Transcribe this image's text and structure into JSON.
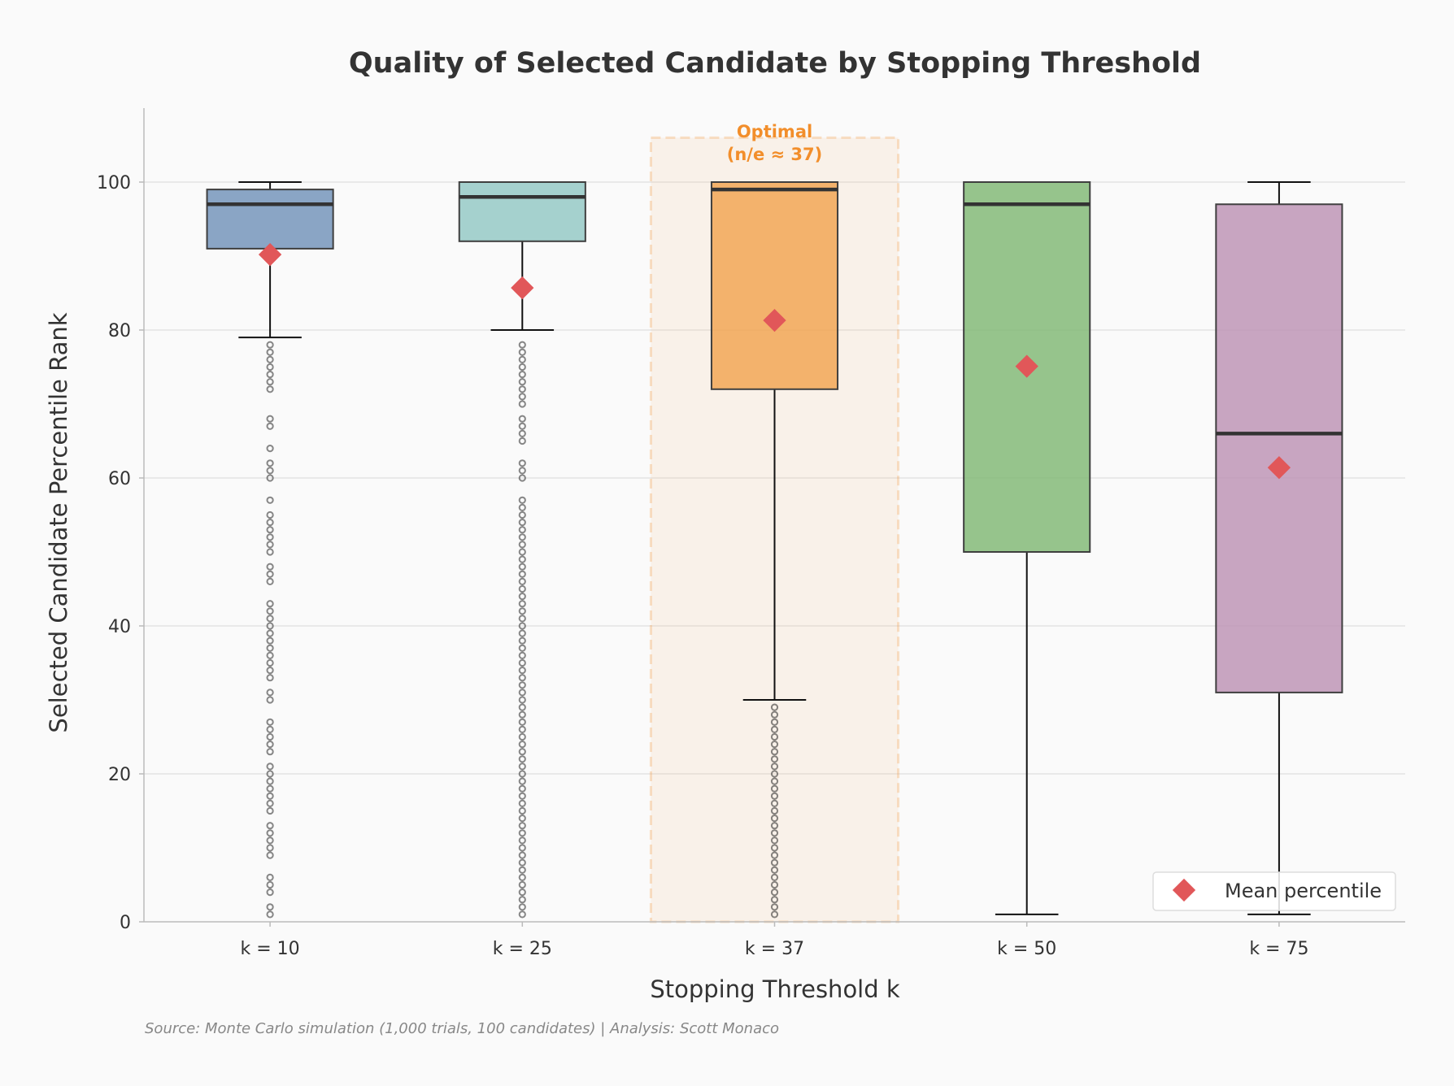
{
  "chart_data": {
    "type": "box",
    "title": "Quality of Selected Candidate by Stopping Threshold",
    "xlabel": "Stopping Threshold k",
    "ylabel": "Selected Candidate Percentile Rank",
    "ylim": [
      0,
      110
    ],
    "yticks": [
      0,
      20,
      40,
      60,
      80,
      100
    ],
    "grid": "y",
    "categories": [
      "k = 10",
      "k = 25",
      "k = 37",
      "k = 50",
      "k = 75"
    ],
    "colors": [
      "#7293b9",
      "#93c8c4",
      "#f2a450",
      "#80b874",
      "#bd93b4"
    ],
    "boxes": [
      {
        "whislo": 79,
        "q1": 91,
        "med": 97,
        "q3": 99,
        "whishi": 100,
        "mean": 90.2,
        "fliers": [
          1,
          2,
          4,
          5,
          6,
          9,
          10,
          11,
          12,
          13,
          15,
          16,
          17,
          18,
          19,
          20,
          21,
          23,
          24,
          25,
          26,
          27,
          30,
          31,
          33,
          34,
          35,
          36,
          37,
          38,
          39,
          40,
          41,
          42,
          43,
          46,
          47,
          48,
          50,
          51,
          52,
          53,
          54,
          55,
          57,
          60,
          61,
          62,
          64,
          67,
          68,
          72,
          73,
          74,
          75,
          76,
          77,
          78
        ]
      },
      {
        "whislo": 80,
        "q1": 92,
        "med": 98,
        "q3": 100,
        "whishi": 100,
        "mean": 85.7,
        "fliers": [
          1,
          2,
          3,
          4,
          5,
          6,
          7,
          8,
          9,
          10,
          11,
          12,
          13,
          14,
          15,
          16,
          17,
          18,
          19,
          20,
          21,
          22,
          23,
          24,
          25,
          26,
          27,
          28,
          29,
          30,
          31,
          32,
          33,
          34,
          35,
          36,
          37,
          38,
          39,
          40,
          41,
          42,
          43,
          44,
          45,
          46,
          47,
          48,
          49,
          50,
          51,
          52,
          53,
          54,
          55,
          56,
          57,
          60,
          61,
          62,
          65,
          66,
          67,
          68,
          70,
          71,
          72,
          73,
          74,
          75,
          76,
          77,
          78
        ]
      },
      {
        "whislo": 30,
        "q1": 72,
        "med": 99,
        "q3": 100,
        "whishi": 100,
        "mean": 81.3,
        "fliers": [
          1,
          2,
          3,
          4,
          5,
          6,
          7,
          8,
          9,
          10,
          11,
          12,
          13,
          14,
          15,
          16,
          17,
          18,
          19,
          20,
          21,
          22,
          23,
          24,
          25,
          26,
          27,
          28,
          29
        ]
      },
      {
        "whislo": 1,
        "q1": 50,
        "med": 97,
        "q3": 100,
        "whishi": 100,
        "mean": 75.1,
        "fliers": []
      },
      {
        "whislo": 1,
        "q1": 31,
        "med": 66,
        "q3": 97,
        "whishi": 100,
        "mean": 61.4,
        "fliers": []
      }
    ],
    "highlight": {
      "category": "k = 37",
      "label_line1": "Optimal",
      "label_line2": "(n/e ≈ 37)",
      "color": "#f28e2b"
    },
    "legend": {
      "label": "Mean percentile",
      "marker_color": "#e15759",
      "placement": "lower-right"
    },
    "source": "Source: Monte Carlo simulation (1,000 trials, 100 candidates) | Analysis: Scott Monaco"
  }
}
